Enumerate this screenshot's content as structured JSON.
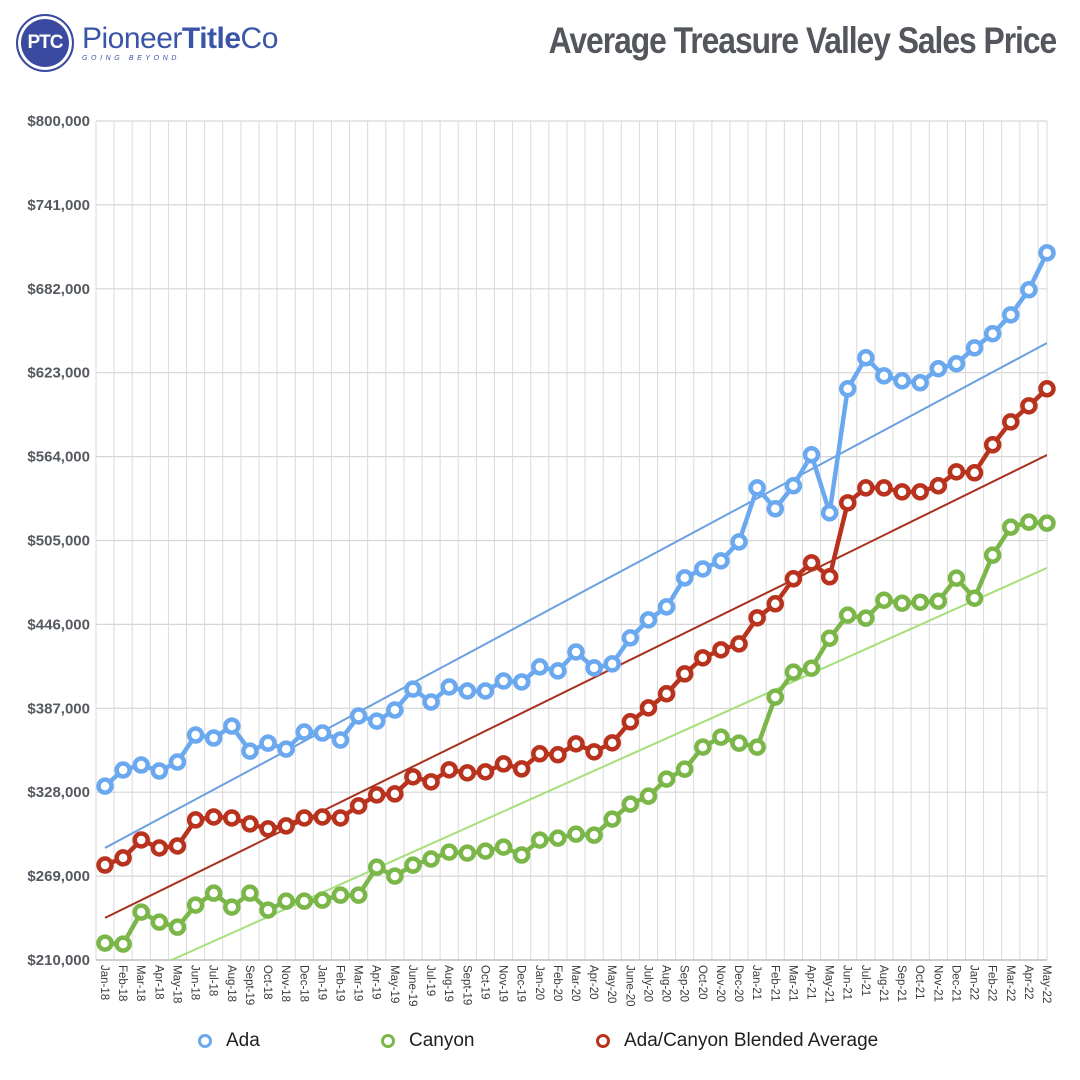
{
  "header": {
    "logo_badge": "PTC",
    "logo_name_regular": "Pioneer",
    "logo_name_bold": "Title",
    "logo_name_suffix": "Co",
    "logo_tagline": "GOING BEYOND",
    "title": "Average Treasure Valley Sales Price"
  },
  "chart_data": {
    "type": "line",
    "title": "Average Treasure Valley Sales Price",
    "xlabel": "",
    "ylabel": "",
    "ylim": [
      210000,
      800000
    ],
    "yticks": [
      210000,
      269000,
      328000,
      387000,
      446000,
      505000,
      564000,
      623000,
      682000,
      741000,
      800000
    ],
    "ytick_labels": [
      "$210,000",
      "$269,000",
      "$328,000",
      "$387,000",
      "$446,000",
      "$505,000",
      "$564,000",
      "$623,000",
      "$682,000",
      "$741,000",
      "$800,000"
    ],
    "grid": true,
    "legend_position": "bottom",
    "categories": [
      "Jan-18",
      "Feb-18",
      "Mar-18",
      "Apr-18",
      "May-18",
      "Jun-18",
      "Jul-18",
      "Aug-18",
      "Sept-19",
      "Oct-18",
      "Nov-18",
      "Dec-18",
      "Jan-19",
      "Feb-19",
      "Mar-19",
      "Apr-19",
      "May-19",
      "June-19",
      "Jul-19",
      "Aug-19",
      "Sept-19",
      "Oct-19",
      "Nov-19",
      "Dec-19",
      "Jan-20",
      "Feb-20",
      "Mar-20",
      "Apr-20",
      "May-20",
      "June-20",
      "July-20",
      "Aug-20",
      "Sep-20",
      "Oct-20",
      "Nov-20",
      "Dec-20",
      "Jan-21",
      "Feb-21",
      "Mar-21",
      "Apr-21",
      "May-21",
      "Jun-21",
      "Jul-21",
      "Aug-21",
      "Sep-21",
      "Oct-21",
      "Nov-21",
      "Dec-21",
      "Jan-22",
      "Feb-22",
      "Mar-22",
      "Apr-22",
      "May-22"
    ],
    "series": [
      {
        "name": "Ada",
        "color": "#6aa8f0",
        "trend_color": "#6a9fe0",
        "values": [
          332300,
          343600,
          347100,
          342900,
          349200,
          368200,
          366100,
          374500,
          356900,
          362500,
          358300,
          370300,
          369600,
          364700,
          381600,
          378000,
          385800,
          400500,
          391400,
          402000,
          399200,
          399200,
          406200,
          405500,
          416100,
          413300,
          426600,
          415400,
          418200,
          436500,
          449200,
          458300,
          478700,
          485000,
          490700,
          504000,
          542000,
          527300,
          543500,
          565300,
          524500,
          611700,
          633500,
          620800,
          617300,
          615900,
          625800,
          629300,
          640500,
          650400,
          663700,
          681300,
          707300
        ],
        "trend": [
          288800,
          643900
        ]
      },
      {
        "name": "Canyon",
        "color": "#7ab648",
        "trend_color": "#a6e07a",
        "values": [
          221900,
          221200,
          243700,
          236600,
          233100,
          248600,
          257000,
          247200,
          257000,
          245100,
          251400,
          251400,
          252100,
          255600,
          255600,
          275300,
          269000,
          276700,
          281000,
          285900,
          285200,
          286600,
          289400,
          283800,
          294300,
          295700,
          298500,
          297800,
          309100,
          319600,
          325200,
          337200,
          344200,
          359700,
          366700,
          362500,
          359700,
          394900,
          412400,
          415200,
          436300,
          452500,
          450400,
          463000,
          460900,
          461600,
          462300,
          478500,
          464400,
          494700,
          514400,
          517900,
          517200
        ],
        "trend": [
          189000,
          485700
        ]
      },
      {
        "name": "Ada/Canyon Blended Average",
        "color": "#b8321e",
        "trend_color": "#a8301e",
        "values": [
          276800,
          281800,
          294400,
          288800,
          290200,
          308500,
          310600,
          309900,
          305700,
          302200,
          304300,
          309900,
          310600,
          309900,
          318400,
          326100,
          326800,
          338800,
          335300,
          343700,
          341600,
          342300,
          347900,
          344400,
          355000,
          354300,
          362000,
          356400,
          362700,
          377500,
          387300,
          397200,
          411200,
          422500,
          428100,
          432300,
          450600,
          460500,
          478100,
          489300,
          479500,
          531500,
          542000,
          542000,
          539200,
          539200,
          543500,
          553300,
          552600,
          572300,
          588400,
          599700,
          611700
        ],
        "trend": [
          239600,
          565100
        ]
      }
    ]
  },
  "legend": {
    "items": [
      {
        "label": "Ada",
        "color": "#6aa8f0"
      },
      {
        "label": "Canyon",
        "color": "#7ab648"
      },
      {
        "label": "Ada/Canyon Blended Average",
        "color": "#b8321e"
      }
    ]
  }
}
